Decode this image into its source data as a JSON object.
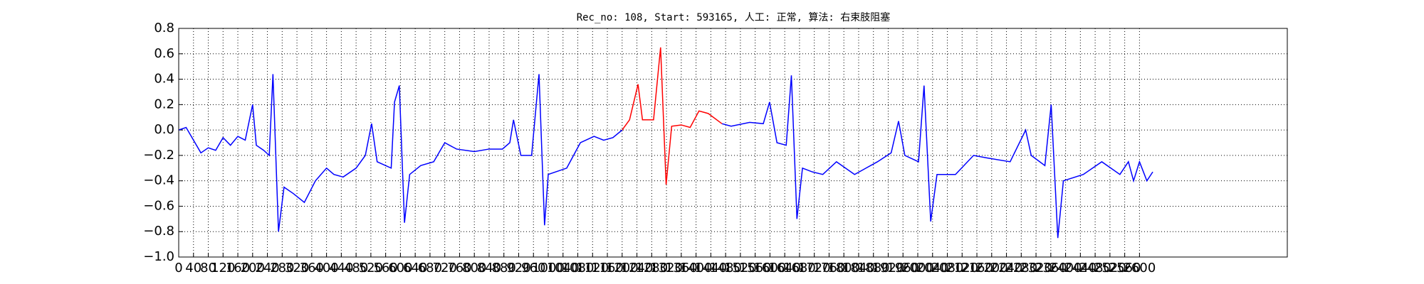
{
  "chart_data": {
    "type": "line",
    "title": "Rec_no: 108, Start: 593165, 人工: 正常, 算法: 右束肢阻塞",
    "x": [
      0,
      20,
      40,
      60,
      80,
      100,
      120,
      140,
      160,
      180,
      200,
      210,
      230,
      245,
      255,
      270,
      285,
      310,
      340,
      370,
      400,
      420,
      445,
      480,
      505,
      522,
      537,
      575,
      584,
      597,
      611,
      625,
      655,
      690,
      720,
      752,
      800,
      840,
      876,
      896,
      906,
      926,
      955,
      975,
      990,
      1000,
      1050,
      1087,
      1124,
      1150,
      1175,
      1200,
      1220,
      1243,
      1255,
      1285,
      1304,
      1319,
      1334,
      1360,
      1384,
      1408,
      1433,
      1470,
      1495,
      1545,
      1582,
      1599,
      1619,
      1644,
      1658,
      1673,
      1688,
      1715,
      1743,
      1780,
      1829,
      1860,
      1891,
      1928,
      1948,
      1965,
      2002,
      2017,
      2035,
      2052,
      2102,
      2151,
      2188,
      2250,
      2292,
      2307,
      2344,
      2361,
      2379,
      2394,
      2448,
      2498,
      2547,
      2570,
      2584,
      2600,
      2620,
      2636
    ],
    "series": [
      {
        "color": "#0000ff",
        "values": [
          0.0,
          0.02,
          -0.08,
          -0.18,
          -0.14,
          -0.16,
          -0.06,
          -0.12,
          -0.05,
          -0.08,
          0.2,
          -0.12,
          -0.16,
          -0.2,
          0.44,
          -0.8,
          -0.45,
          -0.5,
          -0.57,
          -0.4,
          -0.3,
          -0.35,
          -0.37,
          -0.3,
          -0.2,
          0.05,
          -0.25,
          -0.3,
          0.22,
          0.35,
          -0.73,
          -0.35,
          -0.28,
          -0.25,
          -0.1,
          -0.15,
          -0.17,
          -0.15,
          -0.15,
          -0.1,
          0.08,
          -0.2,
          -0.2,
          0.44,
          -0.75,
          -0.35,
          -0.3,
          -0.1,
          -0.05,
          -0.08,
          -0.06,
          0.0,
          null,
          null,
          null,
          null,
          null,
          null,
          null,
          null,
          null,
          null,
          null,
          0.05,
          0.03,
          0.06,
          0.05,
          0.22,
          -0.1,
          -0.12,
          0.43,
          -0.7,
          -0.3,
          -0.33,
          -0.35,
          -0.25,
          -0.35,
          -0.3,
          -0.25,
          -0.18,
          0.07,
          -0.2,
          -0.25,
          0.35,
          -0.72,
          -0.35,
          -0.35,
          -0.2,
          -0.22,
          -0.25,
          0.0,
          -0.2,
          -0.28,
          0.2,
          -0.85,
          -0.4,
          -0.35,
          -0.25,
          -0.35,
          -0.25,
          -0.4,
          -0.25,
          -0.4,
          -0.33
        ]
      },
      {
        "color": "#ff0000",
        "values": [
          null,
          null,
          null,
          null,
          null,
          null,
          null,
          null,
          null,
          null,
          null,
          null,
          null,
          null,
          null,
          null,
          null,
          null,
          null,
          null,
          null,
          null,
          null,
          null,
          null,
          null,
          null,
          null,
          null,
          null,
          null,
          null,
          null,
          null,
          null,
          null,
          null,
          null,
          null,
          null,
          null,
          null,
          null,
          null,
          null,
          null,
          null,
          null,
          null,
          null,
          null,
          0.0,
          0.08,
          0.36,
          0.08,
          0.08,
          0.65,
          -0.43,
          0.03,
          0.04,
          0.02,
          0.15,
          0.13,
          0.05,
          null,
          null,
          null,
          null,
          null,
          null,
          null,
          null,
          null,
          null,
          null,
          null,
          null,
          null,
          null,
          null,
          null,
          null,
          null,
          null,
          null,
          null,
          null,
          null,
          null,
          null,
          null,
          null,
          null,
          null,
          null,
          null,
          null,
          null,
          null,
          null,
          null,
          null,
          null,
          null
        ]
      }
    ],
    "xlim": [
      0,
      3000
    ],
    "xticks": [
      0,
      40,
      80,
      120,
      160,
      200,
      240,
      280,
      320,
      360,
      400,
      440,
      480,
      520,
      560,
      600,
      640,
      680,
      720,
      760,
      800,
      840,
      880,
      920,
      960,
      1000,
      1040,
      1080,
      1120,
      1160,
      1200,
      1240,
      1280,
      1320,
      1360,
      1400,
      1440,
      1480,
      1520,
      1560,
      1600,
      1640,
      1680,
      1720,
      1760,
      1800,
      1840,
      1880,
      1920,
      1960,
      2000,
      2040,
      2080,
      2120,
      2160,
      2200,
      2240,
      2280,
      2320,
      2360,
      2400,
      2440,
      2480,
      2520,
      2560,
      2600
    ],
    "ylim": [
      -1.0,
      0.8
    ],
    "yticks": [
      {
        "value": -1.0,
        "label": "−1.0"
      },
      {
        "value": -0.8,
        "label": "−0.8"
      },
      {
        "value": -0.6,
        "label": "−0.6"
      },
      {
        "value": -0.4,
        "label": "−0.4"
      },
      {
        "value": -0.2,
        "label": "−0.2"
      },
      {
        "value": 0,
        "label": "0.0"
      },
      0.2,
      0.4,
      0.6,
      0.8
    ],
    "grid": true
  }
}
